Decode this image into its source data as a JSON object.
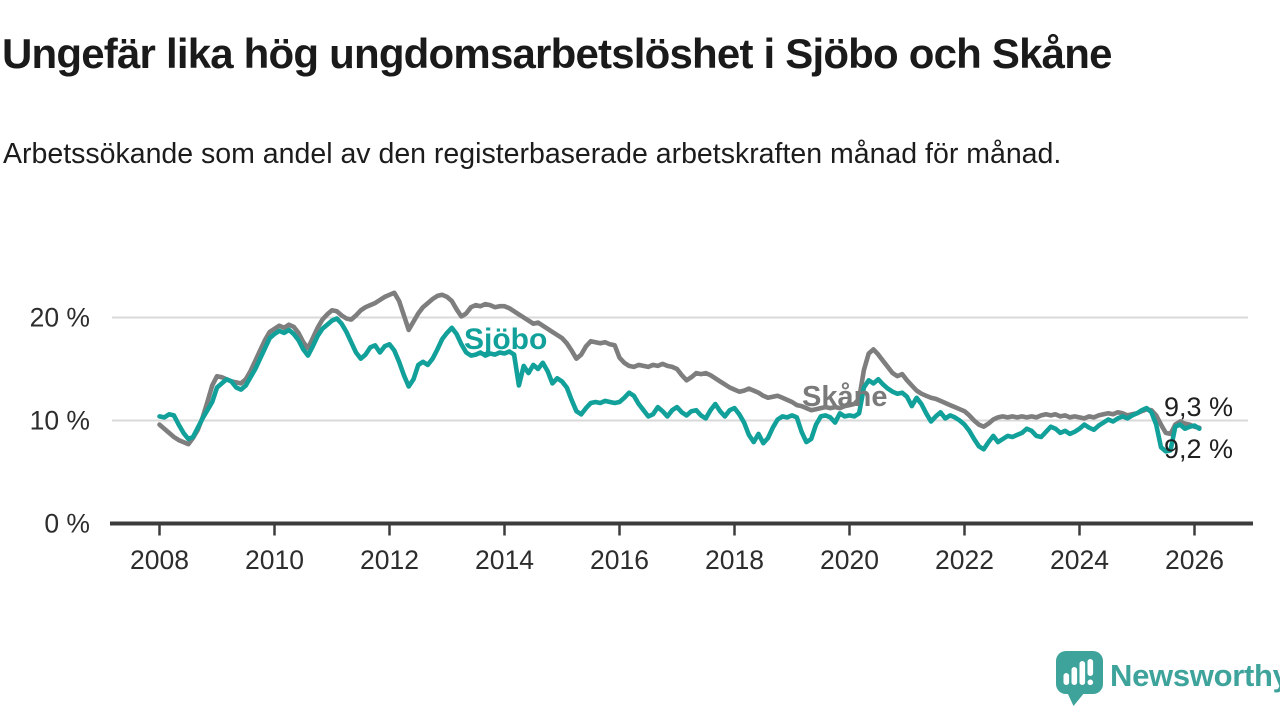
{
  "page": {
    "title": "Ungefär lika hög ungdomsarbetslöshet i Sjöbo och Skåne",
    "subtitle": "Arbetssökande som andel av den registerbaserade arbetskraften månad för månad."
  },
  "footer": {
    "brand": "Newsworthy",
    "logo_icon": "newsworthy-speech-bubble-bar-chart-icon",
    "brand_color": "#3EA39B"
  },
  "chart_data": {
    "type": "line",
    "title": "Ungefär lika hög ungdomsarbetslöshet i Sjöbo och Skåne",
    "unit": "%",
    "gridlines": "horizontal",
    "legend": "inline-labels",
    "colors": {
      "grid": "#d9d9d9",
      "axis": "#3c3c3c",
      "tick_text": "#2d2d2d"
    },
    "y_axis": {
      "range": [
        0,
        23.5
      ],
      "ticks": [
        {
          "value": 0,
          "label": "0 %"
        },
        {
          "value": 10,
          "label": "10 %"
        },
        {
          "value": 20,
          "label": "20 %"
        }
      ]
    },
    "x_axis": {
      "start": "2008-01",
      "end": "2026-02",
      "frequency": "monthly",
      "ticks": [
        {
          "year": 2008,
          "label": "2008"
        },
        {
          "year": 2010,
          "label": "2010"
        },
        {
          "year": 2012,
          "label": "2012"
        },
        {
          "year": 2014,
          "label": "2014"
        },
        {
          "year": 2016,
          "label": "2016"
        },
        {
          "year": 2018,
          "label": "2018"
        },
        {
          "year": 2020,
          "label": "2020"
        },
        {
          "year": 2022,
          "label": "2022"
        },
        {
          "year": 2024,
          "label": "2024"
        },
        {
          "year": 2026,
          "label": "2026"
        }
      ]
    },
    "series": [
      {
        "id": "sjobo",
        "name": "Sjöbo",
        "color": "#12A19A",
        "end_label": "9,2 %",
        "end_value": 9.2,
        "values": [
          10.4,
          10.3,
          10.6,
          10.5,
          9.6,
          8.8,
          8.2,
          8.4,
          9.3,
          10.2,
          11.0,
          11.8,
          13.2,
          13.6,
          14.0,
          13.8,
          13.2,
          13.0,
          13.4,
          14.2,
          15.0,
          16.0,
          17.0,
          18.0,
          18.4,
          18.7,
          18.5,
          18.8,
          18.4,
          17.8,
          16.9,
          16.3,
          17.2,
          18.2,
          18.9,
          19.3,
          19.7,
          19.9,
          19.4,
          18.6,
          17.6,
          16.6,
          16.0,
          16.4,
          17.1,
          17.3,
          16.6,
          17.2,
          17.4,
          16.8,
          15.7,
          14.4,
          13.3,
          14.0,
          15.4,
          15.7,
          15.4,
          16.0,
          16.9,
          17.9,
          18.5,
          19.0,
          18.4,
          17.4,
          16.6,
          16.3,
          16.4,
          16.6,
          16.3,
          16.5,
          16.4,
          16.6,
          16.5,
          16.7,
          16.4,
          13.4,
          15.3,
          14.6,
          15.4,
          15.0,
          15.6,
          14.8,
          13.6,
          14.1,
          13.8,
          13.2,
          12.0,
          10.9,
          10.6,
          11.2,
          11.7,
          11.8,
          11.7,
          11.9,
          11.8,
          11.7,
          11.8,
          12.2,
          12.7,
          12.4,
          11.6,
          11.0,
          10.4,
          10.6,
          11.3,
          10.9,
          10.4,
          11.0,
          11.3,
          10.8,
          10.5,
          10.9,
          11.0,
          10.5,
          10.2,
          11.0,
          11.6,
          10.9,
          10.4,
          11.0,
          11.2,
          10.6,
          9.8,
          8.6,
          7.9,
          8.7,
          7.8,
          8.3,
          9.3,
          10.1,
          10.4,
          10.3,
          10.5,
          10.3,
          8.9,
          7.9,
          8.2,
          9.6,
          10.4,
          10.5,
          10.3,
          9.8,
          10.7,
          10.4,
          10.5,
          10.4,
          10.7,
          13.2,
          13.9,
          13.6,
          14.0,
          13.5,
          13.1,
          12.8,
          12.6,
          12.7,
          12.3,
          11.4,
          12.2,
          11.6,
          10.7,
          9.9,
          10.4,
          10.8,
          10.2,
          10.5,
          10.3,
          10.0,
          9.6,
          9.0,
          8.2,
          7.5,
          7.2,
          7.9,
          8.5,
          7.9,
          8.2,
          8.5,
          8.4,
          8.6,
          8.8,
          9.2,
          9.0,
          8.5,
          8.4,
          8.9,
          9.4,
          9.2,
          8.8,
          9.0,
          8.7,
          8.9,
          9.2,
          9.6,
          9.3,
          9.1,
          9.5,
          9.8,
          10.1,
          9.9,
          10.2,
          10.4,
          10.2,
          10.5,
          10.7,
          11.0,
          11.2,
          10.8,
          9.6,
          7.4,
          7.0,
          7.1,
          9.4,
          9.6,
          9.2,
          9.4,
          9.5,
          9.2
        ]
      },
      {
        "id": "skane",
        "name": "Skåne",
        "color": "#7E7E7E",
        "label_color": "#7A7A7A",
        "end_label": "9,3 %",
        "end_value": 9.3,
        "values": [
          9.6,
          9.2,
          8.8,
          8.4,
          8.1,
          7.9,
          7.7,
          8.3,
          9.1,
          10.3,
          11.8,
          13.4,
          14.3,
          14.2,
          14.0,
          13.8,
          13.7,
          13.6,
          14.0,
          14.8,
          15.8,
          16.8,
          17.8,
          18.6,
          18.9,
          19.2,
          19.0,
          19.3,
          19.1,
          18.5,
          17.6,
          17.0,
          18.0,
          19.0,
          19.8,
          20.3,
          20.7,
          20.6,
          20.2,
          19.9,
          19.8,
          20.2,
          20.7,
          21.0,
          21.2,
          21.4,
          21.7,
          22.0,
          22.2,
          22.4,
          21.6,
          20.2,
          18.8,
          19.6,
          20.4,
          21.0,
          21.4,
          21.8,
          22.1,
          22.2,
          22.0,
          21.6,
          20.8,
          20.1,
          20.4,
          21.0,
          21.2,
          21.1,
          21.3,
          21.2,
          21.0,
          21.1,
          21.1,
          20.9,
          20.6,
          20.3,
          20.0,
          19.7,
          19.4,
          19.5,
          19.2,
          18.9,
          18.6,
          18.3,
          18.0,
          17.5,
          16.8,
          16.0,
          16.4,
          17.2,
          17.7,
          17.6,
          17.5,
          17.6,
          17.4,
          17.3,
          16.1,
          15.6,
          15.3,
          15.2,
          15.4,
          15.3,
          15.2,
          15.4,
          15.3,
          15.5,
          15.3,
          15.2,
          15.0,
          14.4,
          13.9,
          14.2,
          14.6,
          14.5,
          14.6,
          14.4,
          14.1,
          13.8,
          13.5,
          13.2,
          13.0,
          12.8,
          12.9,
          13.1,
          12.9,
          12.7,
          12.4,
          12.2,
          12.3,
          12.4,
          12.2,
          12.0,
          11.8,
          11.5,
          11.4,
          11.2,
          11.0,
          11.1,
          11.2,
          11.3,
          11.2,
          11.3,
          11.2,
          11.4,
          11.5,
          11.6,
          12.1,
          14.9,
          16.5,
          16.9,
          16.4,
          15.8,
          15.2,
          14.6,
          14.3,
          14.5,
          13.9,
          13.4,
          12.9,
          12.6,
          12.4,
          12.2,
          12.1,
          11.9,
          11.7,
          11.5,
          11.3,
          11.1,
          10.9,
          10.5,
          10.0,
          9.6,
          9.4,
          9.7,
          10.1,
          10.3,
          10.4,
          10.3,
          10.4,
          10.3,
          10.4,
          10.3,
          10.4,
          10.3,
          10.5,
          10.6,
          10.5,
          10.6,
          10.4,
          10.5,
          10.3,
          10.4,
          10.3,
          10.2,
          10.4,
          10.3,
          10.5,
          10.6,
          10.7,
          10.6,
          10.8,
          10.7,
          10.5,
          10.6,
          10.7,
          10.9,
          11.1,
          11.0,
          10.5,
          9.6,
          8.8,
          8.7,
          9.6,
          9.9,
          9.7,
          9.6,
          9.4,
          9.3
        ]
      }
    ]
  }
}
